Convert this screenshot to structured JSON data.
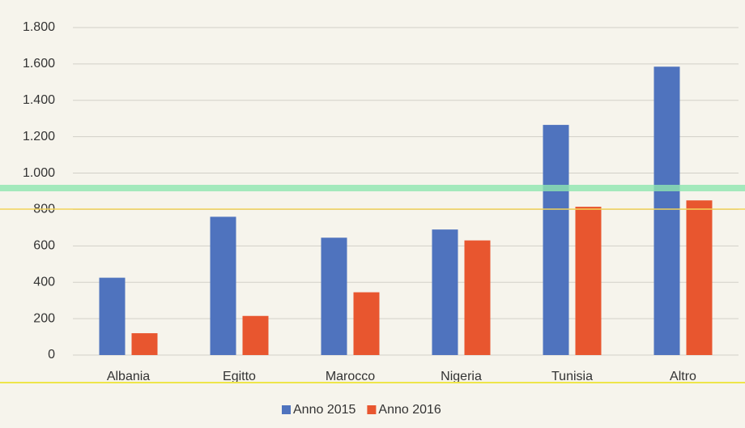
{
  "chart_data": {
    "type": "bar",
    "categories": [
      "Albania",
      "Egitto",
      "Marocco",
      "Nigeria",
      "Tunisia",
      "Altro"
    ],
    "series": [
      {
        "name": "Anno 2015",
        "color": "#4f73be",
        "values": [
          425,
          760,
          645,
          690,
          1265,
          1585
        ]
      },
      {
        "name": "Anno 2016",
        "color": "#e8562f",
        "values": [
          120,
          215,
          345,
          630,
          815,
          850
        ]
      }
    ],
    "ylim": [
      0,
      1800
    ],
    "yticks": [
      0,
      200,
      400,
      600,
      800,
      {
        "value": 1000,
        "label": "1.000"
      },
      {
        "value": 1200,
        "label": "1.200"
      },
      {
        "value": 1400,
        "label": "1.400"
      },
      {
        "value": 1600,
        "label": "1.600"
      },
      {
        "value": 1800,
        "label": "1.800"
      }
    ],
    "grid": true,
    "legend": "bottom"
  }
}
